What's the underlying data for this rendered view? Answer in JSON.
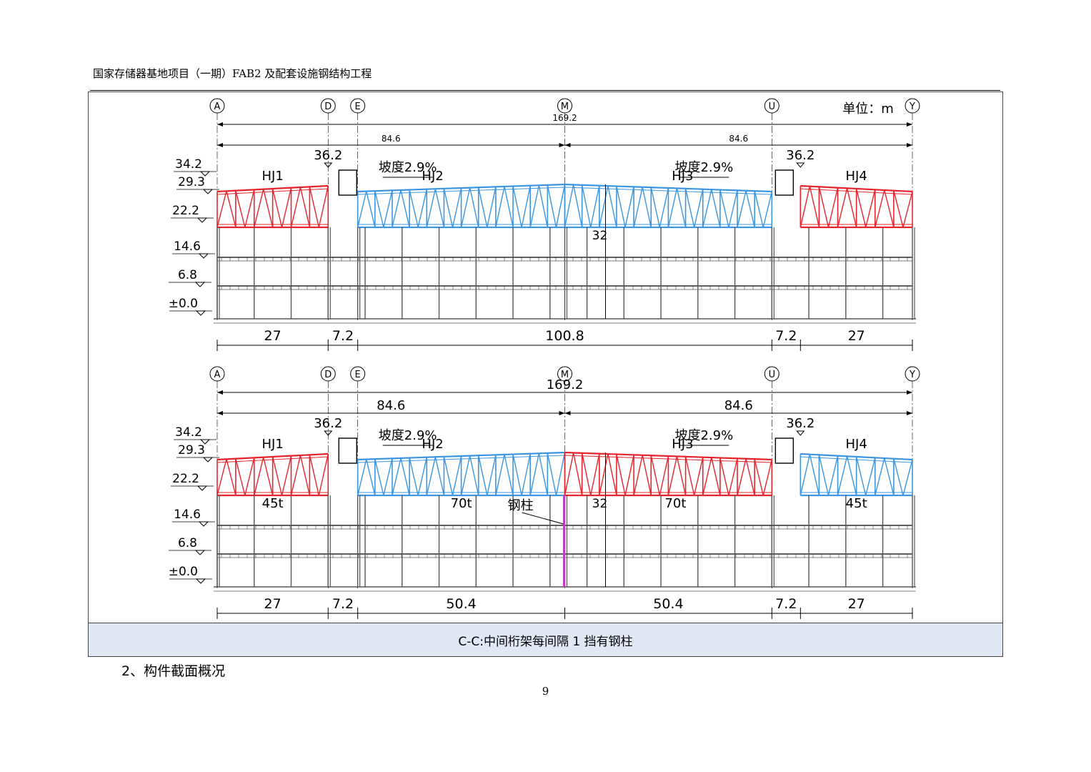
{
  "header": {
    "title": "国家存储器基地项目（一期）FAB2 及配套设施钢结构工程"
  },
  "figure": {
    "unit_label": "单位：m",
    "axes": [
      "A",
      "D",
      "E",
      "M",
      "U",
      "Y"
    ],
    "total_span": "169.2",
    "half_span": "84.6",
    "top_elev": "36.2",
    "slope_label": "坡度2.9%",
    "trusses": [
      "HJ1",
      "HJ2",
      "HJ3",
      "HJ4"
    ],
    "elevations": [
      "34.2",
      "29.3",
      "22.2",
      "14.6",
      "6.8",
      "±0.0"
    ],
    "height_dim": "32",
    "upper_bottom_dims": [
      "27",
      "7.2",
      "100.8",
      "7.2",
      "27"
    ],
    "lower_bottom_dims": [
      "27",
      "7.2",
      "50.4",
      "50.4",
      "7.2",
      "27"
    ],
    "weights": [
      "45t",
      "70t",
      "70t",
      "45t"
    ],
    "steel_column_label": "钢柱",
    "caption": "C-C:中间桁架每间隔 1 挡有钢柱"
  },
  "section_heading": "2、构件截面概况",
  "page_number": "9",
  "colors": {
    "red_truss": "#e8232b",
    "blue_truss": "#3b95e0",
    "column_magenta": "#c43bc4",
    "caption_bg": "#dfe8f3"
  }
}
